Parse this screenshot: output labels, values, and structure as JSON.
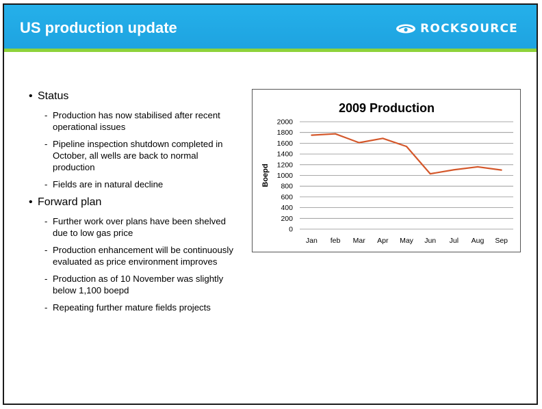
{
  "slide": {
    "title": "US production update",
    "logo_text": "ROCKSOURCE",
    "logo_icon": "rocksource-logo-icon"
  },
  "colors": {
    "header": "#1ea3e0",
    "stripe": "#8ed23a",
    "line": "#d4572a"
  },
  "bullets": [
    {
      "label": "Status",
      "items": [
        "Production has now stabilised after recent operational issues",
        "Pipeline inspection shutdown completed in October, all wells are back to normal production",
        "Fields are in natural decline"
      ]
    },
    {
      "label": "Forward plan",
      "items": [
        "Further work over plans have been shelved due to low gas price",
        "Production enhancement will be continuously evaluated as price environment improves",
        "Production as of 10 November was slightly below 1,100 boepd",
        "Repeating further mature fields projects"
      ]
    }
  ],
  "chart_data": {
    "type": "line",
    "title": "2009 Production",
    "xlabel": "",
    "ylabel": "Boepd",
    "categories": [
      "Jan",
      "feb",
      "Mar",
      "Apr",
      "May",
      "Jun",
      "Jul",
      "Aug",
      "Sep"
    ],
    "series": [
      {
        "values": [
          1750,
          1775,
          1610,
          1690,
          1540,
          1030,
          1105,
          1160,
          1100
        ]
      }
    ],
    "ylim": [
      0,
      2000
    ],
    "yticks": [
      0,
      200,
      400,
      600,
      800,
      1000,
      1200,
      1400,
      1600,
      1800,
      2000
    ],
    "grid": true,
    "legend": "none"
  }
}
